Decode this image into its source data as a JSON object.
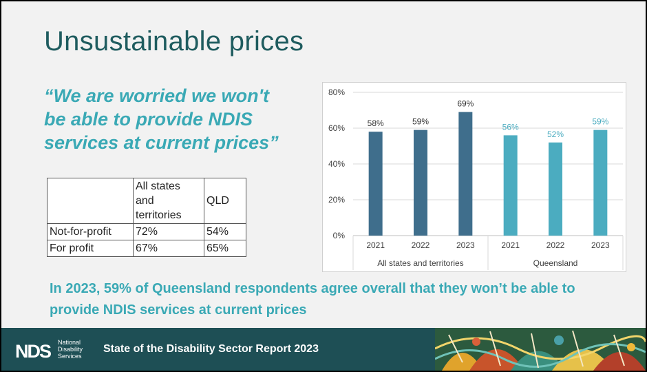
{
  "slide": {
    "title": "Unsustainable prices",
    "quote_lines": [
      "“We are worried we won't",
      "be able to provide NDIS",
      "services at current prices”"
    ],
    "summary_lines": [
      "In 2023, 59% of Queensland respondents agree overall that they won’t be able to",
      "provide  NDIS services at current prices"
    ]
  },
  "table": {
    "header": [
      "",
      "All states and territories",
      "QLD"
    ],
    "header_lines": [
      "All states",
      "and",
      "territories"
    ],
    "rows": [
      {
        "label": "Not-for-profit",
        "all": "72%",
        "qld": "54%"
      },
      {
        "label": "For profit",
        "all": "67%",
        "qld": "65%"
      }
    ]
  },
  "chart_data": {
    "type": "bar",
    "title": "",
    "categories": [
      "2021",
      "2022",
      "2023",
      "2021",
      "2022",
      "2023"
    ],
    "groups": [
      {
        "name": "All states and territories",
        "count": 3
      },
      {
        "name": "Queensland",
        "count": 3
      }
    ],
    "values": [
      58,
      59,
      69,
      56,
      52,
      59
    ],
    "labels": [
      "58%",
      "59%",
      "69%",
      "56%",
      "52%",
      "59%"
    ],
    "colors": [
      "#3f6e8c",
      "#3f6e8c",
      "#3f6e8c",
      "#4bacc0",
      "#4bacc0",
      "#4bacc0"
    ],
    "label_colors": [
      "#333333",
      "#333333",
      "#333333",
      "#4bacc0",
      "#4bacc0",
      "#4bacc0"
    ],
    "yticks": [
      "0%",
      "20%",
      "40%",
      "60%",
      "80%"
    ],
    "ylim": [
      0,
      80
    ],
    "grid": true
  },
  "footer": {
    "logo_mark": "NDS",
    "logo_lines": [
      "National",
      "Disability",
      "Services"
    ],
    "report_title": "State of the Disability Sector Report 2023"
  }
}
